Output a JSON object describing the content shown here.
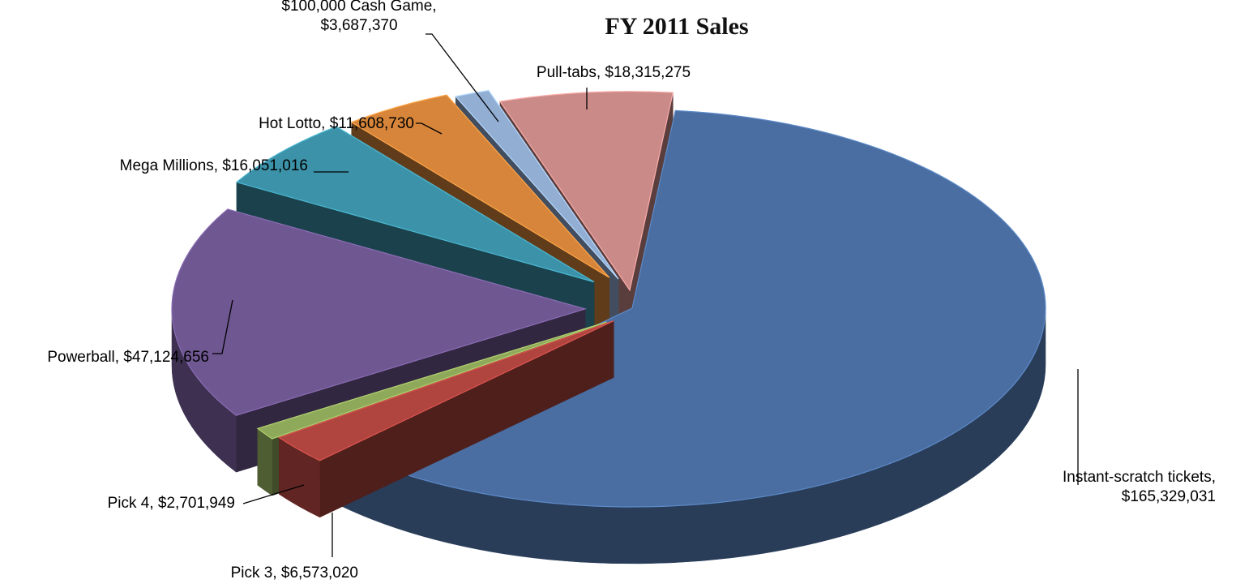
{
  "chart_data": {
    "type": "pie",
    "title": "FY 2011 Sales",
    "slices": [
      {
        "name": "Instant-scratch tickets",
        "label": [
          "Instant-scratch tickets,",
          "$165,329,031"
        ],
        "value": 165329031,
        "color": "#4a6ea1"
      },
      {
        "name": "Pick 3",
        "label": [
          "Pick 3, $6,573,020"
        ],
        "value": 6573020,
        "color": "#b0443f"
      },
      {
        "name": "Pick 4",
        "label": [
          "Pick 4, $2,701,949"
        ],
        "value": 2701949,
        "color": "#8fa95a"
      },
      {
        "name": "Powerball",
        "label": [
          "Powerball, $47,124,656"
        ],
        "value": 47124656,
        "color": "#6f5791"
      },
      {
        "name": "Mega Millions",
        "label": [
          "Mega Millions, $16,051,016"
        ],
        "value": 16051016,
        "color": "#3c93a9"
      },
      {
        "name": "Hot Lotto",
        "label": [
          "Hot Lotto, $11,608,730"
        ],
        "value": 11608730,
        "color": "#d6853a"
      },
      {
        "name": "$100,000 Cash Game",
        "label": [
          "$100,000 Cash Game,",
          "$3,687,370"
        ],
        "value": 3687370,
        "color": "#92aed3"
      },
      {
        "name": "Pull-tabs",
        "label": [
          "Pull-tabs, $18,315,275"
        ],
        "value": 18315275,
        "color": "#c98a88"
      }
    ],
    "exploded": true,
    "style": "3d",
    "legend": "none"
  }
}
